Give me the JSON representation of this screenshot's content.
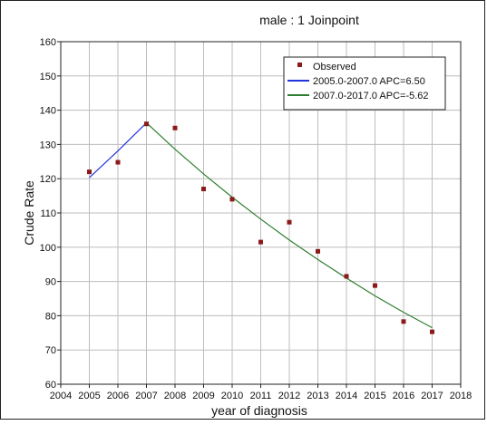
{
  "chart_data": {
    "type": "line",
    "title": "male : 1 Joinpoint",
    "xlabel": "year of diagnosis",
    "ylabel": "Crude Rate",
    "xlim": [
      2004,
      2018
    ],
    "ylim": [
      60,
      160
    ],
    "x_ticks": [
      2004,
      2005,
      2006,
      2007,
      2008,
      2009,
      2010,
      2011,
      2012,
      2013,
      2014,
      2015,
      2016,
      2017,
      2018
    ],
    "y_ticks": [
      60,
      70,
      80,
      90,
      100,
      110,
      120,
      130,
      140,
      150,
      160
    ],
    "grid": true,
    "legend_position": "top-right",
    "observed": {
      "name": "Observed",
      "color": "#8b1a1a",
      "x": [
        2005,
        2006,
        2007,
        2008,
        2009,
        2010,
        2011,
        2012,
        2013,
        2014,
        2015,
        2016,
        2017
      ],
      "y": [
        122.0,
        124.8,
        136.0,
        134.8,
        117.0,
        114.0,
        101.5,
        107.3,
        98.8,
        91.5,
        88.8,
        78.3,
        75.3
      ]
    },
    "series": [
      {
        "name": "2005.0-2007.0 APC=6.50",
        "color": "#2233dd",
        "x": [
          2005,
          2006,
          2007
        ],
        "y": [
          120.3,
          128.1,
          136.3
        ]
      },
      {
        "name": "2007.0-2017.0 APC=-5.62",
        "color": "#2f7d2f",
        "x": [
          2007,
          2008,
          2009,
          2010,
          2011,
          2012,
          2013,
          2014,
          2015,
          2016,
          2017
        ],
        "y": [
          136.3,
          128.6,
          121.4,
          114.6,
          108.2,
          102.1,
          96.4,
          91.0,
          85.8,
          81.0,
          76.5
        ]
      }
    ]
  }
}
